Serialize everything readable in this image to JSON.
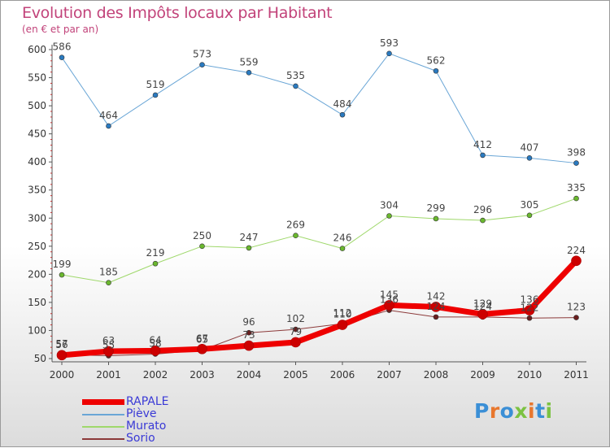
{
  "title": "Evolution des Impôts locaux par Habitant",
  "subtitle": "(en € et par an)",
  "logo": {
    "letters": [
      "P",
      "r",
      "o",
      "x",
      "i",
      "t",
      "i"
    ],
    "colors": [
      "#3b8fd6",
      "#e8772e",
      "#3b8fd6",
      "#7cc242",
      "#e8772e",
      "#3b8fd6",
      "#7cc242"
    ]
  },
  "chart_data": {
    "type": "line",
    "x": [
      "2000",
      "2001",
      "2002",
      "2003",
      "2004",
      "2005",
      "2006",
      "2007",
      "2008",
      "2009",
      "2010",
      "2011"
    ],
    "ylim": [
      50,
      600
    ],
    "yticks": [
      50,
      100,
      150,
      200,
      250,
      300,
      350,
      400,
      450,
      500,
      550,
      600
    ],
    "grid": false,
    "legend_position": "bottom-left",
    "series": [
      {
        "name": "RAPALE",
        "color": "#ee0000",
        "marker": "#cc0000",
        "width": 7,
        "values": [
          56,
          63,
          64,
          67,
          73,
          79,
          110,
          145,
          142,
          129,
          136,
          224
        ],
        "labels": [
          "56",
          "63",
          "64",
          "67",
          "73",
          "79",
          "110",
          "145",
          "142",
          "129",
          "136",
          "224"
        ]
      },
      {
        "name": "Piève",
        "color": "#6aa6d6",
        "marker": "#2a7ac0",
        "width": 1,
        "values": [
          586,
          464,
          519,
          573,
          559,
          535,
          484,
          593,
          562,
          412,
          407,
          398
        ],
        "labels": [
          "586",
          "464",
          "519",
          "573",
          "559",
          "535",
          "484",
          "593",
          "562",
          "412",
          "407",
          "398"
        ]
      },
      {
        "name": "Murato",
        "color": "#9fd86b",
        "marker": "#6ab82e",
        "width": 1,
        "values": [
          199,
          185,
          219,
          250,
          247,
          269,
          246,
          304,
          299,
          296,
          305,
          335
        ],
        "labels": [
          "199",
          "185",
          "219",
          "250",
          "247",
          "269",
          "246",
          "304",
          "299",
          "296",
          "305",
          "335"
        ]
      },
      {
        "name": "Sorio",
        "color": "#8c3a3a",
        "marker": "#6a1e1e",
        "width": 1,
        "values": [
          57,
          55,
          58,
          65,
          96,
          102,
          112,
          136,
          124,
          124,
          122,
          123
        ],
        "labels": [
          "57",
          "55",
          "58",
          "65",
          "96",
          "102",
          "112",
          "136",
          "124",
          "124",
          "122",
          "123"
        ]
      }
    ]
  }
}
